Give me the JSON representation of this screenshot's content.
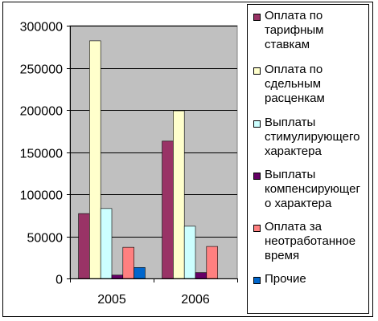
{
  "chart_data": {
    "type": "bar",
    "categories": [
      "2005",
      "2006"
    ],
    "series": [
      {
        "name": "Оплата по тарифным ставкам",
        "values": [
          77000,
          163000
        ],
        "color": "#993366"
      },
      {
        "name": "Оплата по сдельным расценкам",
        "values": [
          282000,
          199000
        ],
        "color": "#ffffcc"
      },
      {
        "name": "Выплаты стимулирующего характера",
        "values": [
          83000,
          62000
        ],
        "color": "#ccffff"
      },
      {
        "name": "Выплаты компенсирующего характера",
        "values": [
          4000,
          7000
        ],
        "color": "#660066"
      },
      {
        "name": "Оплата за неотработанное время",
        "values": [
          37000,
          38000
        ],
        "color": "#ff8080"
      },
      {
        "name": "Прочие",
        "values": [
          13000,
          0
        ],
        "color": "#0066cc"
      }
    ],
    "ylim": [
      0,
      300000
    ],
    "yticks": [
      0,
      50000,
      100000,
      150000,
      200000,
      250000,
      300000
    ],
    "ytick_labels": [
      "0",
      "50000",
      "100000",
      "150000",
      "200000",
      "250000",
      "300000"
    ],
    "plot_background": "#c0c0c0",
    "grid": true,
    "legend_position": "right",
    "title": "",
    "xlabel": "",
    "ylabel": ""
  },
  "legend": {
    "items": [
      {
        "lines": [
          "Оплата по",
          "тарифным",
          "ставкам"
        ],
        "color": "#993366"
      },
      {
        "lines": [
          "Оплата по",
          "сдельным",
          "расценкам"
        ],
        "color": "#ffffcc"
      },
      {
        "lines": [
          "Выплаты",
          "стимулирующего",
          "характера"
        ],
        "color": "#ccffff"
      },
      {
        "lines": [
          "Выплаты",
          "компенсирующег",
          "о характера"
        ],
        "color": "#660066"
      },
      {
        "lines": [
          "Оплата за",
          "неотработанное",
          "время"
        ],
        "color": "#ff8080"
      },
      {
        "lines": [
          "Прочие"
        ],
        "color": "#0066cc"
      }
    ]
  }
}
